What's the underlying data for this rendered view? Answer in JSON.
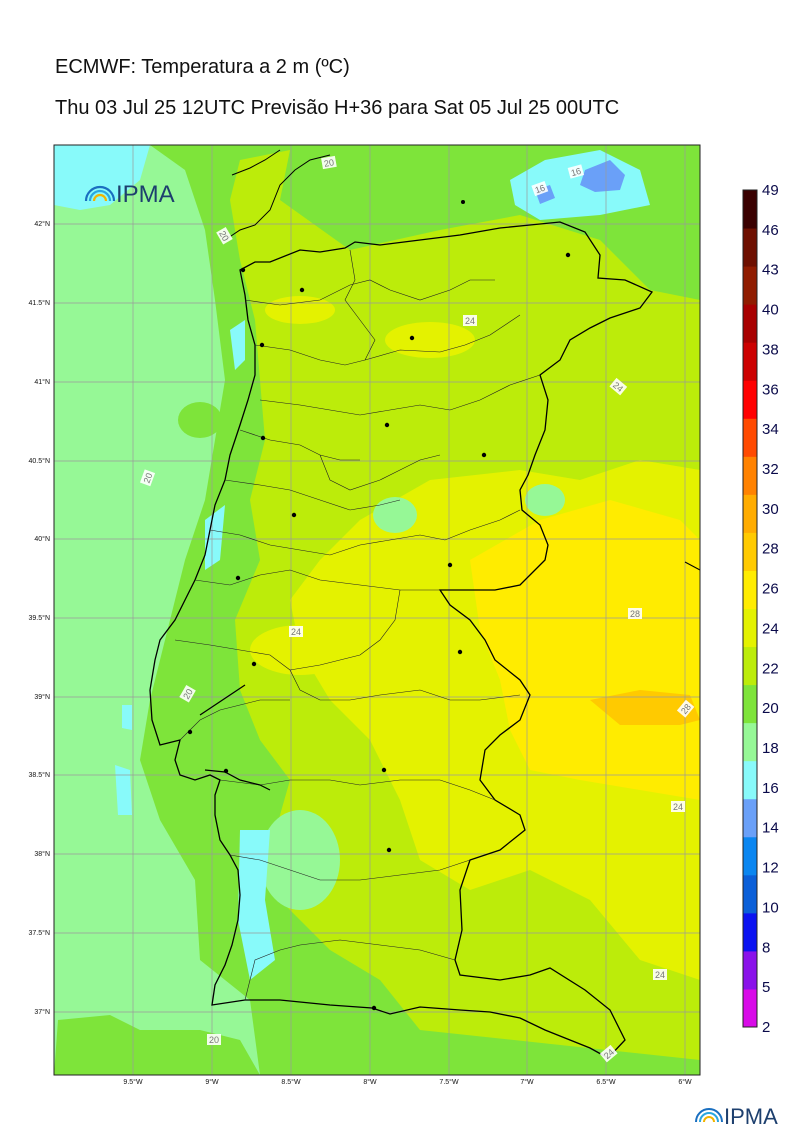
{
  "header": {
    "title": "ECMWF: Temperatura a 2 m (ºC)",
    "subtitle": "Thu 03 Jul 25 12UTC Previsão H+36 para Sat 05 Jul 25 00UTC"
  },
  "logo": {
    "text": "IPMA"
  },
  "map": {
    "lat_labels": [
      "42°N",
      "41.5°N",
      "41°N",
      "40.5°N",
      "40°N",
      "39.5°N",
      "39°N",
      "38.5°N",
      "38°N",
      "37.5°N",
      "37°N"
    ],
    "lon_labels": [
      "9.5°W",
      "9°W",
      "8.5°W",
      "8°W",
      "7.5°W",
      "7°W",
      "6.5°W",
      "6°W"
    ],
    "contour_labels": [
      "20",
      "16",
      "16",
      "20",
      "24",
      "24",
      "20",
      "24",
      "28",
      "28",
      "24",
      "20",
      "24",
      "24",
      "20"
    ]
  },
  "colorbar": {
    "ticks": [
      "49",
      "46",
      "43",
      "40",
      "38",
      "36",
      "34",
      "32",
      "30",
      "28",
      "26",
      "24",
      "22",
      "20",
      "18",
      "16",
      "14",
      "12",
      "10",
      "8",
      "5",
      "2"
    ],
    "colors": [
      "#d80be8",
      "#8a12ea",
      "#0a12f0",
      "#0a5fd8",
      "#0a86f0",
      "#6aa0f8",
      "#88fafa",
      "#96f896",
      "#7ee43a",
      "#bcec0a",
      "#e4f200",
      "#ffec00",
      "#ffca00",
      "#ffac00",
      "#ff8200",
      "#ff4a00",
      "#ff0000",
      "#cc0000",
      "#a80000",
      "#901c00",
      "#6e1000",
      "#3a0000"
    ]
  }
}
